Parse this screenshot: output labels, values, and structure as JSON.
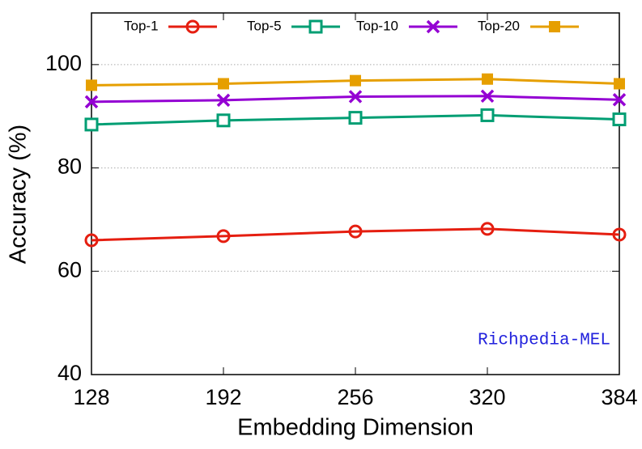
{
  "chart_data": {
    "type": "line",
    "x_label": "Embedding Dimension",
    "y_label": "Accuracy (%)",
    "annotation": "Richpedia-MEL",
    "x": [
      128,
      192,
      256,
      320,
      384
    ],
    "series": [
      {
        "name": "Top-1",
        "color": "#e51e10",
        "marker": "open-circle",
        "values": [
          66.0,
          66.8,
          67.7,
          68.2,
          67.1
        ]
      },
      {
        "name": "Top-5",
        "color": "#009e73",
        "marker": "open-square",
        "values": [
          88.4,
          89.2,
          89.7,
          90.2,
          89.4
        ]
      },
      {
        "name": "Top-10",
        "color": "#9400d3",
        "marker": "cross",
        "values": [
          92.8,
          93.1,
          93.8,
          93.9,
          93.2
        ]
      },
      {
        "name": "Top-20",
        "color": "#e69f00",
        "marker": "filled-square",
        "values": [
          96.0,
          96.3,
          96.9,
          97.2,
          96.3
        ]
      }
    ],
    "xlim": [
      128,
      384
    ],
    "xticks": [
      128,
      192,
      256,
      320,
      384
    ],
    "ylim": [
      40,
      110
    ],
    "yticks": [
      40,
      60,
      80,
      100
    ],
    "grid": true
  }
}
